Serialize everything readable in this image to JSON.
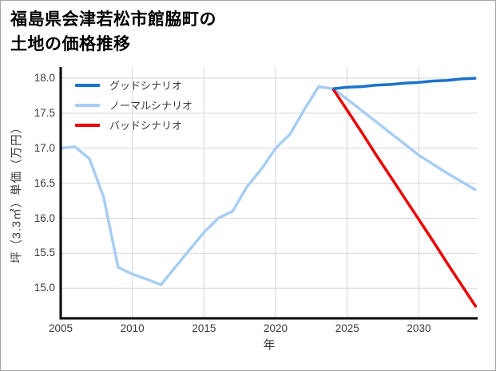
{
  "figure": {
    "title_line1": "福島県会津若松市館脇町の",
    "title_line2": "土地の価格推移",
    "background_color": "#ffffff",
    "border_color": "#a6a6a6"
  },
  "chart_data": {
    "type": "line",
    "title": "福島県会津若松市館脇町の土地の価格推移",
    "xlabel": "年",
    "ylabel": "坪（3.3㎡）単価（万円）",
    "xlim": [
      2005,
      2034.1
    ],
    "ylim": [
      14.57,
      18.16
    ],
    "grid": true,
    "grid_color": "#d6d6d6",
    "spine_color": "#000000",
    "tick_label_color": "#3b3b3b",
    "legend_position": "upper-left",
    "legend_entries": [
      "グッドシナリオ",
      "ノーマルシナリオ",
      "バッドシナリオ"
    ],
    "xticks": {
      "values": [
        2005,
        2010,
        2015,
        2020,
        2025,
        2030
      ],
      "labels": [
        "2005",
        "2010",
        "2015",
        "2020",
        "2025",
        "2030"
      ]
    },
    "yticks": {
      "values": [
        15.0,
        15.5,
        16.0,
        16.5,
        17.0,
        17.5,
        18.0
      ],
      "labels": [
        "15.0",
        "15.5",
        "16.0",
        "16.5",
        "17.0",
        "17.5",
        "18.0"
      ]
    },
    "series": [
      {
        "name": "グッドシナリオ",
        "color": "#1a73c8",
        "line_width": 3.5,
        "draw_order": 3,
        "x": [
          2024,
          2025,
          2026,
          2027,
          2028,
          2029,
          2030,
          2031,
          2032,
          2033,
          2034
        ],
        "values": [
          17.85,
          17.87,
          17.88,
          17.9,
          17.91,
          17.93,
          17.94,
          17.96,
          17.97,
          17.99,
          18.0
        ]
      },
      {
        "name": "ノーマルシナリオ",
        "color": "#a8cdf2",
        "line_width": 3.5,
        "draw_order": 1,
        "x": [
          2005,
          2006,
          2007,
          2008,
          2009,
          2010,
          2011,
          2012,
          2013,
          2014,
          2015,
          2016,
          2017,
          2018,
          2019,
          2020,
          2021,
          2022,
          2023,
          2024,
          2025,
          2026,
          2027,
          2028,
          2029,
          2030,
          2031,
          2032,
          2033,
          2034
        ],
        "values": [
          17.0,
          17.02,
          16.85,
          16.3,
          15.3,
          15.2,
          15.13,
          15.05,
          15.3,
          15.55,
          15.8,
          16.0,
          16.1,
          16.45,
          16.7,
          17.0,
          17.2,
          17.55,
          17.88,
          17.85,
          17.7,
          17.54,
          17.38,
          17.22,
          17.06,
          16.9,
          16.77,
          16.64,
          16.52,
          16.4
        ]
      },
      {
        "name": "バッドシナリオ",
        "color": "#ea0000",
        "line_width": 3.5,
        "draw_order": 2,
        "x": [
          2024,
          2025,
          2026,
          2027,
          2028,
          2029,
          2030,
          2031,
          2032,
          2033,
          2034
        ],
        "values": [
          17.85,
          17.54,
          17.23,
          16.91,
          16.6,
          16.29,
          15.98,
          15.67,
          15.35,
          15.04,
          14.73
        ]
      }
    ]
  }
}
